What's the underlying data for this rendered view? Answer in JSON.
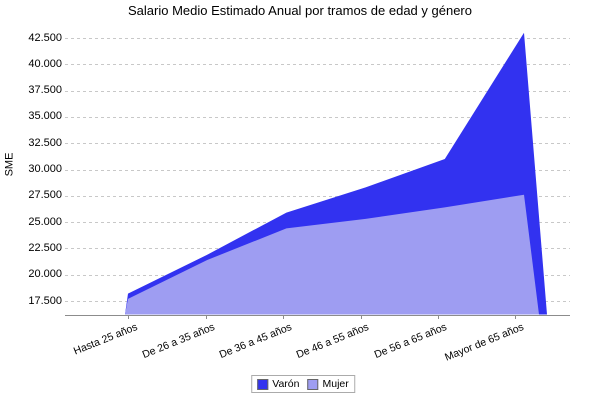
{
  "chart_data": {
    "type": "area",
    "title": "Salario Medio Estimado Anual por tramos de edad y género",
    "ylabel": "SME",
    "xlabel": "",
    "categories": [
      "Hasta 25 años",
      "De 26 a 35 años",
      "De 36 a 45 años",
      "De 46 a 55 años",
      "De 56 a 65 años",
      "Mayor de 65 años"
    ],
    "series": [
      {
        "name": "Varón",
        "color": "#3232F0",
        "values": [
          18200,
          21900,
          25900,
          28300,
          31000,
          43000
        ]
      },
      {
        "name": "Mujer",
        "color": "#9E9DF2",
        "values": [
          17700,
          21400,
          24400,
          25300,
          26400,
          27600
        ]
      }
    ],
    "y_ticks": [
      {
        "value": 42500,
        "label": "42.500"
      },
      {
        "value": 40000,
        "label": "40.000"
      },
      {
        "value": 37500,
        "label": "37.500"
      },
      {
        "value": 35000,
        "label": "35.000"
      },
      {
        "value": 32500,
        "label": "32.500"
      },
      {
        "value": 30000,
        "label": "30.000"
      },
      {
        "value": 27500,
        "label": "27.500"
      },
      {
        "value": 25000,
        "label": "25.000"
      },
      {
        "value": 22500,
        "label": "22.500"
      },
      {
        "value": 20000,
        "label": "20.000"
      },
      {
        "value": 17500,
        "label": "17.500"
      }
    ],
    "ylim": [
      16200,
      43700
    ],
    "grid": true,
    "legend_position": "bottom"
  },
  "colors": {
    "grid": "#C8C8C8",
    "axis": "#8C8C8C",
    "text": "#000000",
    "legend_border": "#ABABAB",
    "background": "#FFFFFF"
  }
}
